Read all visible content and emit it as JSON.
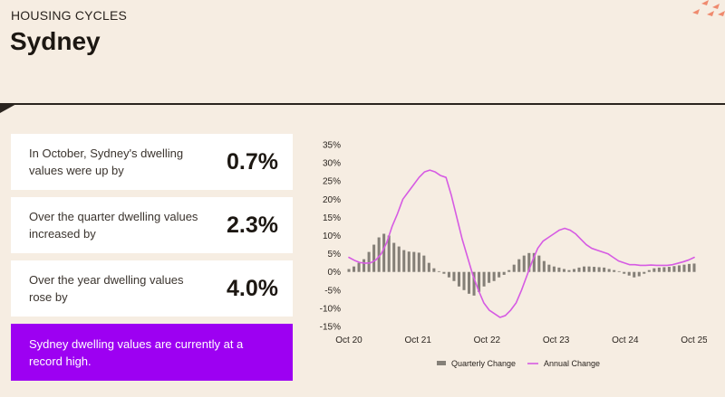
{
  "header": {
    "kicker": "HOUSING CYCLES",
    "title": "Sydney"
  },
  "stats": [
    {
      "text": "In October, Sydney's dwelling values were up by",
      "value": "0.7%"
    },
    {
      "text": "Over the quarter dwelling values increased by",
      "value": "2.3%"
    },
    {
      "text": "Over the year dwelling values rose by",
      "value": "4.0%"
    }
  ],
  "callout": "Sydney dwelling values are currently at a record high.",
  "colors": {
    "background": "#f6ede2",
    "bar": "#858078",
    "line": "#d65be3",
    "callout": "#9d00f2",
    "accent": "#ef8a6e"
  },
  "chart_data": {
    "type": "bar+line",
    "ylim": [
      -15,
      35
    ],
    "y_ticks": [
      "35%",
      "30%",
      "25%",
      "20%",
      "15%",
      "10%",
      "5%",
      "0%",
      "-5%",
      "-10%",
      "-15%"
    ],
    "x_ticks": [
      "Oct 20",
      "Oct 21",
      "Oct 22",
      "Oct 23",
      "Oct 24",
      "Oct 25"
    ],
    "series": [
      {
        "name": "Quarterly Change",
        "kind": "bar",
        "values": [
          0.8,
          1.5,
          2.5,
          3.5,
          5.5,
          7.5,
          9.5,
          10.5,
          10,
          8,
          7,
          6,
          5.6,
          5.5,
          5.3,
          4.5,
          2.5,
          1,
          0.2,
          -0.5,
          -1.5,
          -2.5,
          -4,
          -5,
          -6,
          -6.5,
          -5.5,
          -4,
          -3,
          -2.5,
          -1.5,
          -0.8,
          0.5,
          2,
          3.5,
          4.5,
          5.2,
          5.2,
          4.5,
          3,
          2,
          1.5,
          1.2,
          0.8,
          0.5,
          0.8,
          1.2,
          1.5,
          1.5,
          1.4,
          1.3,
          1.2,
          0.8,
          0.5,
          0.2,
          -0.5,
          -1,
          -1.5,
          -1.2,
          -0.5,
          0.5,
          1,
          1.2,
          1.3,
          1.4,
          1.6,
          1.8,
          2.0,
          2.2,
          2.3
        ]
      },
      {
        "name": "Annual Change",
        "kind": "line",
        "values": [
          4,
          3.2,
          2.6,
          2.4,
          2.5,
          3.3,
          5,
          8,
          12.5,
          16,
          20,
          22,
          24,
          26,
          27.5,
          28,
          27.5,
          26.5,
          26,
          21,
          15,
          9,
          4,
          -1,
          -5,
          -8.5,
          -10.5,
          -11.5,
          -12.5,
          -12,
          -10.5,
          -8.5,
          -5,
          -1,
          3,
          6.5,
          8.5,
          9.5,
          10.5,
          11.5,
          12,
          11.5,
          10.5,
          9,
          7.5,
          6.5,
          6,
          5.5,
          5,
          4,
          3,
          2.5,
          2,
          2,
          1.8,
          1.8,
          1.9,
          1.8,
          1.8,
          1.8,
          2,
          2.4,
          2.8,
          3.3,
          4
        ]
      }
    ]
  }
}
